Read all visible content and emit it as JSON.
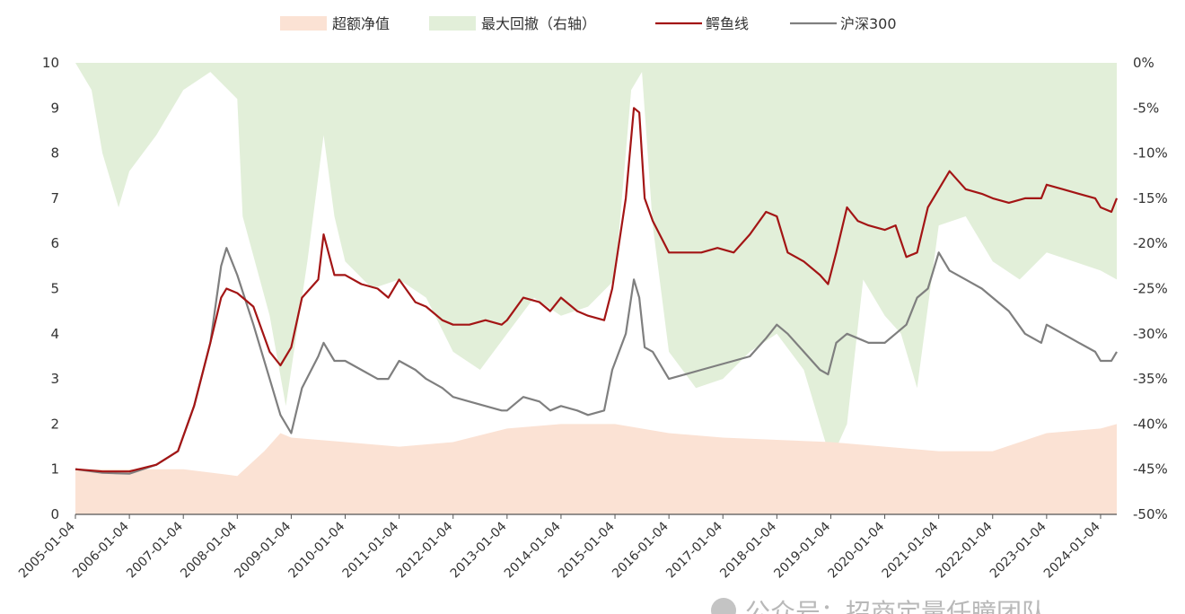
{
  "chart_data": {
    "type": "line",
    "legend": {
      "placement": "top",
      "entries": [
        {
          "key": "excess",
          "label": "超额净值",
          "kind": "area",
          "color": "#fbe2d4"
        },
        {
          "key": "drawdown",
          "label": "最大回撤（右轴）",
          "kind": "area",
          "color": "#e2efd9"
        },
        {
          "key": "crocodile",
          "label": "鳄鱼线",
          "kind": "line",
          "color": "#a31515"
        },
        {
          "key": "hs300",
          "label": "沪深300",
          "kind": "line",
          "color": "#7f7f7f"
        }
      ]
    },
    "left_axis": {
      "min": 0,
      "max": 10,
      "ticks": [
        "0",
        "1",
        "2",
        "3",
        "4",
        "5",
        "6",
        "7",
        "8",
        "9",
        "10"
      ]
    },
    "right_axis": {
      "min": -50,
      "max": 0,
      "ticks": [
        "0%",
        "-5%",
        "-10%",
        "-15%",
        "-20%",
        "-25%",
        "-30%",
        "-35%",
        "-40%",
        "-45%",
        "-50%"
      ]
    },
    "x_axis": {
      "min": 2005.0,
      "max": 2024.3,
      "ticks": [
        "2005-01-04",
        "2006-01-04",
        "2007-01-04",
        "2008-01-04",
        "2009-01-04",
        "2010-01-04",
        "2011-01-04",
        "2012-01-04",
        "2013-01-04",
        "2014-01-04",
        "2015-01-04",
        "2016-01-04",
        "2017-01-04",
        "2018-01-04",
        "2019-01-04",
        "2020-01-04",
        "2021-01-04",
        "2022-01-04",
        "2023-01-04",
        "2024-01-04"
      ]
    },
    "series": [
      {
        "name": "鳄鱼线",
        "axis": "left",
        "x": [
          2005.0,
          2005.5,
          2006.0,
          2006.5,
          2006.9,
          2007.2,
          2007.5,
          2007.7,
          2007.8,
          2008.0,
          2008.3,
          2008.6,
          2008.8,
          2009.0,
          2009.2,
          2009.5,
          2009.6,
          2009.8,
          2010.0,
          2010.3,
          2010.6,
          2010.8,
          2011.0,
          2011.3,
          2011.5,
          2011.8,
          2012.0,
          2012.3,
          2012.6,
          2012.9,
          2013.0,
          2013.3,
          2013.6,
          2013.8,
          2014.0,
          2014.3,
          2014.5,
          2014.8,
          2014.95,
          2015.2,
          2015.35,
          2015.45,
          2015.55,
          2015.7,
          2016.0,
          2016.3,
          2016.6,
          2016.9,
          2017.2,
          2017.5,
          2017.8,
          2018.0,
          2018.2,
          2018.5,
          2018.8,
          2018.95,
          2019.1,
          2019.3,
          2019.5,
          2019.7,
          2020.0,
          2020.2,
          2020.4,
          2020.6,
          2020.8,
          2021.0,
          2021.2,
          2021.5,
          2021.8,
          2022.0,
          2022.3,
          2022.6,
          2022.9,
          2023.0,
          2023.3,
          2023.6,
          2023.9,
          2024.0,
          2024.2,
          2024.3
        ],
        "values": [
          1.0,
          0.95,
          0.95,
          1.1,
          1.4,
          2.4,
          3.8,
          4.8,
          5.0,
          4.9,
          4.6,
          3.6,
          3.3,
          3.7,
          4.8,
          5.2,
          6.2,
          5.3,
          5.3,
          5.1,
          5.0,
          4.8,
          5.2,
          4.7,
          4.6,
          4.3,
          4.2,
          4.2,
          4.3,
          4.2,
          4.3,
          4.8,
          4.7,
          4.5,
          4.8,
          4.5,
          4.4,
          4.3,
          5.0,
          7.0,
          9.0,
          8.9,
          7.0,
          6.5,
          5.8,
          5.8,
          5.8,
          5.9,
          5.8,
          6.2,
          6.7,
          6.6,
          5.8,
          5.6,
          5.3,
          5.1,
          5.8,
          6.8,
          6.5,
          6.4,
          6.3,
          6.4,
          5.7,
          5.8,
          6.8,
          7.2,
          7.6,
          7.2,
          7.1,
          7.0,
          6.9,
          7.0,
          7.0,
          7.3,
          7.2,
          7.1,
          7.0,
          6.8,
          6.7,
          7.0
        ]
      },
      {
        "name": "沪深300",
        "axis": "left",
        "x": [
          2005.0,
          2005.5,
          2006.0,
          2006.5,
          2006.9,
          2007.2,
          2007.5,
          2007.7,
          2007.8,
          2008.0,
          2008.3,
          2008.6,
          2008.8,
          2009.0,
          2009.2,
          2009.5,
          2009.6,
          2009.8,
          2010.0,
          2010.3,
          2010.6,
          2010.8,
          2011.0,
          2011.3,
          2011.5,
          2011.8,
          2012.0,
          2012.3,
          2012.6,
          2012.9,
          2013.0,
          2013.3,
          2013.6,
          2013.8,
          2014.0,
          2014.3,
          2014.5,
          2014.8,
          2014.95,
          2015.2,
          2015.35,
          2015.45,
          2015.55,
          2015.7,
          2016.0,
          2016.3,
          2016.6,
          2016.9,
          2017.2,
          2017.5,
          2017.8,
          2018.0,
          2018.2,
          2018.5,
          2018.8,
          2018.95,
          2019.1,
          2019.3,
          2019.5,
          2019.7,
          2020.0,
          2020.2,
          2020.4,
          2020.6,
          2020.8,
          2021.0,
          2021.2,
          2021.5,
          2021.8,
          2022.0,
          2022.3,
          2022.6,
          2022.9,
          2023.0,
          2023.3,
          2023.6,
          2023.9,
          2024.0,
          2024.2,
          2024.3
        ],
        "values": [
          1.0,
          0.92,
          0.9,
          1.1,
          1.4,
          2.4,
          3.8,
          5.5,
          5.9,
          5.3,
          4.2,
          3.0,
          2.2,
          1.8,
          2.8,
          3.5,
          3.8,
          3.4,
          3.4,
          3.2,
          3.0,
          3.0,
          3.4,
          3.2,
          3.0,
          2.8,
          2.6,
          2.5,
          2.4,
          2.3,
          2.3,
          2.6,
          2.5,
          2.3,
          2.4,
          2.3,
          2.2,
          2.3,
          3.2,
          4.0,
          5.2,
          4.8,
          3.7,
          3.6,
          3.0,
          3.1,
          3.2,
          3.3,
          3.4,
          3.5,
          3.9,
          4.2,
          4.0,
          3.6,
          3.2,
          3.1,
          3.8,
          4.0,
          3.9,
          3.8,
          3.8,
          4.0,
          4.2,
          4.8,
          5.0,
          5.8,
          5.4,
          5.2,
          5.0,
          4.8,
          4.5,
          4.0,
          3.8,
          4.2,
          4.0,
          3.8,
          3.6,
          3.4,
          3.4,
          3.6
        ]
      },
      {
        "name": "超额净值",
        "axis": "left",
        "x": [
          2005.0,
          2006.0,
          2007.0,
          2008.0,
          2008.5,
          2008.8,
          2009.0,
          2010.0,
          2011.0,
          2012.0,
          2013.0,
          2014.0,
          2015.0,
          2016.0,
          2017.0,
          2018.0,
          2019.0,
          2020.0,
          2021.0,
          2022.0,
          2023.0,
          2024.0,
          2024.3
        ],
        "values": [
          1.0,
          1.0,
          1.0,
          0.85,
          1.4,
          1.8,
          1.7,
          1.6,
          1.5,
          1.6,
          1.9,
          2.0,
          2.0,
          1.8,
          1.7,
          1.65,
          1.6,
          1.5,
          1.4,
          1.4,
          1.8,
          1.9,
          2.0
        ]
      },
      {
        "name": "最大回撤（右轴）",
        "axis": "right",
        "x": [
          2005.0,
          2005.3,
          2005.5,
          2005.8,
          2006.0,
          2006.5,
          2007.0,
          2007.5,
          2008.0,
          2008.1,
          2008.6,
          2008.9,
          2009.0,
          2009.3,
          2009.6,
          2009.8,
          2010.0,
          2010.5,
          2011.0,
          2011.5,
          2012.0,
          2012.5,
          2013.0,
          2013.5,
          2014.0,
          2014.5,
          2015.0,
          2015.3,
          2015.5,
          2015.7,
          2016.0,
          2016.5,
          2017.0,
          2017.5,
          2018.0,
          2018.5,
          2018.8,
          2019.0,
          2019.3,
          2019.6,
          2020.0,
          2020.3,
          2020.6,
          2021.0,
          2021.5,
          2022.0,
          2022.5,
          2023.0,
          2023.5,
          2024.0,
          2024.3
        ],
        "values": [
          0,
          -3,
          -10,
          -16,
          -12,
          -8,
          -3,
          -1,
          -4,
          -17,
          -28,
          -38,
          -34,
          -22,
          -8,
          -17,
          -22,
          -25,
          -24,
          -26,
          -32,
          -34,
          -30,
          -26,
          -28,
          -27,
          -24,
          -3,
          -1,
          -18,
          -32,
          -36,
          -35,
          -32,
          -30,
          -34,
          -40,
          -44,
          -40,
          -24,
          -28,
          -30,
          -36,
          -18,
          -17,
          -22,
          -24,
          -21,
          -22,
          -23,
          -24
        ]
      }
    ],
    "watermark": "公众号：招商定量任瞳团队"
  }
}
